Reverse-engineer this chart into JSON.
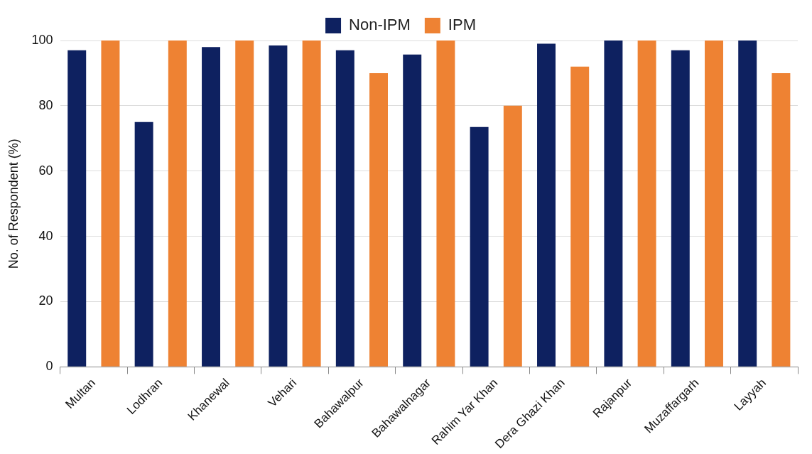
{
  "chart_data": {
    "type": "bar",
    "ylabel": "No. of Respondent (%)",
    "categories": [
      "Multan",
      "Lodhran",
      "Khanewal",
      "Vehari",
      "Bahawalpur",
      "Bahawalnagar",
      "Rahim Yar Khan",
      "Dera Ghazi Khan",
      "Rajanpur",
      "Muzaffargarh",
      "Layyah"
    ],
    "series": [
      {
        "name": "Non-IPM",
        "color": "#0e2160",
        "values": [
          97,
          75,
          98,
          98.5,
          97,
          95.7,
          73.5,
          99,
          100,
          97,
          100
        ]
      },
      {
        "name": "IPM",
        "color": "#ee8233",
        "values": [
          100,
          100,
          100,
          100,
          90,
          100,
          80,
          92,
          100,
          100,
          90
        ]
      }
    ],
    "ylim": [
      0,
      100
    ],
    "yticks": [
      0,
      20,
      40,
      60,
      80,
      100
    ],
    "grid": "y",
    "legend": "top"
  }
}
